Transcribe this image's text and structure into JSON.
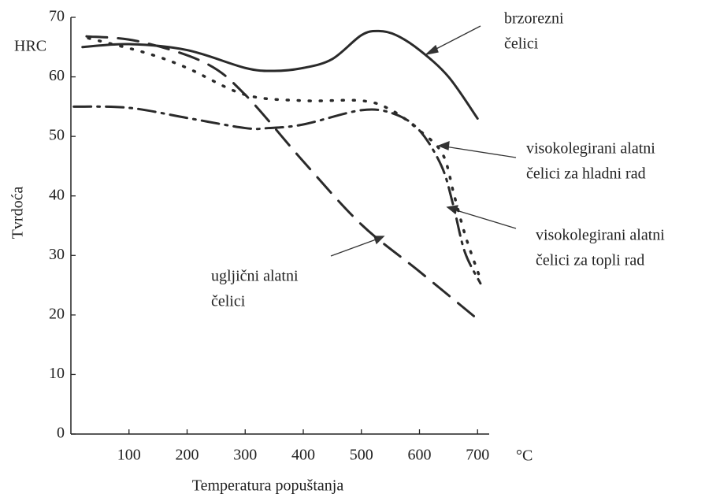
{
  "chart_data": {
    "type": "line",
    "x_label": "Temperatura popuštanja",
    "y_label": "Tvrdoća",
    "x_unit": "°C",
    "y_unit": "HRC",
    "xlim": [
      0,
      720
    ],
    "ylim": [
      0,
      70
    ],
    "xticks": [
      100,
      200,
      300,
      400,
      500,
      600,
      700
    ],
    "yticks": [
      0,
      10,
      20,
      30,
      40,
      50,
      60,
      70
    ],
    "series": [
      {
        "label": [
          "brzorezni",
          "čelici"
        ],
        "color": "#2a2a2a",
        "style": "solid",
        "x": [
          20,
          100,
          200,
          300,
          350,
          400,
          450,
          500,
          530,
          560,
          600,
          650,
          700
        ],
        "values": [
          65,
          65.5,
          64.5,
          61.5,
          61,
          61.5,
          63,
          67,
          67.7,
          67,
          64.5,
          60,
          53
        ]
      },
      {
        "label": [
          "visokolegirani alatni",
          "čelici za hladni rad"
        ],
        "color": "#2a2a2a",
        "style": "dotted",
        "x": [
          30,
          130,
          200,
          300,
          400,
          500,
          550,
          600,
          640,
          660,
          680,
          705
        ],
        "values": [
          66.5,
          64,
          61.5,
          57,
          56,
          56,
          54.5,
          51,
          47,
          40,
          33,
          26
        ]
      },
      {
        "label": [
          "visokolegirani alatni",
          "čelici za topli rad"
        ],
        "color": "#2a2a2a",
        "style": "dashdot",
        "x": [
          5,
          100,
          200,
          300,
          340,
          400,
          500,
          556,
          600,
          638,
          658,
          678,
          705
        ],
        "values": [
          55,
          54.8,
          53.1,
          51.4,
          51.4,
          52,
          54.4,
          53.8,
          51,
          45,
          38.5,
          30.6,
          25.3
        ]
      },
      {
        "label": [
          "ugljični alatni",
          "čelici"
        ],
        "color": "#2a2a2a",
        "style": "dashed",
        "x": [
          27,
          115,
          230,
          300,
          400,
          500,
          600,
          700
        ],
        "values": [
          66.8,
          66,
          62.4,
          57,
          45.8,
          35.2,
          27.3,
          19.3
        ]
      }
    ]
  }
}
